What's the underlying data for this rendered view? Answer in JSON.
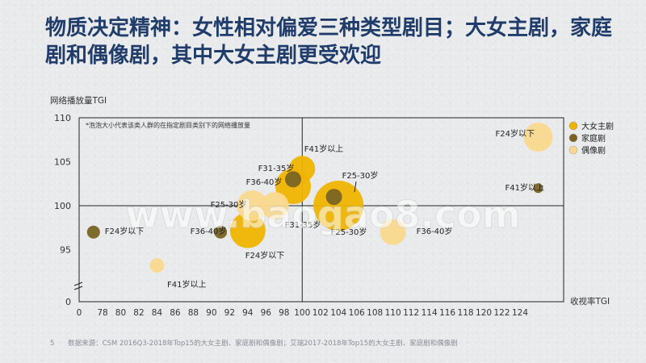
{
  "title": "物质决定精神：女性相对偏爱三种类型剧目；大女主剧，家庭剧和偶像剧，其中大女主剧更受欢迎",
  "footer": {
    "page_number": "5",
    "source": "数据来源：CSM 2016Q3-2018年Top15的大女主剧、家庭剧和偶像剧；艾瑞2017-2018年Top15的大女主剧、家庭剧和偶像剧"
  },
  "watermark": "www.baogao8.com",
  "chart_data": {
    "type": "scatter",
    "ylabel": "网络播放量TGI",
    "xlabel": "收视率TGI",
    "note": "*泡泡大小代表该类人群的在指定剧目类别下的网络播放量",
    "x_ticks": [
      0,
      78,
      80,
      82,
      84,
      86,
      88,
      90,
      92,
      94,
      96,
      98,
      100,
      102,
      104,
      106,
      108,
      110,
      112,
      114,
      116,
      118,
      120,
      122,
      124
    ],
    "y_ticks": [
      0,
      95,
      100,
      105,
      110
    ],
    "xlim": [
      76,
      126
    ],
    "ylim": [
      92,
      110
    ],
    "axis_break": true,
    "reference_lines": {
      "x": 100,
      "y": 100
    },
    "legend_position": "right",
    "colors": {
      "大女主剧": "#f0b400",
      "家庭剧": "#7a6424",
      "偶像剧": "#fad98e"
    },
    "series": [
      {
        "name": "大女主剧",
        "points": [
          {
            "label": "F41岁以上",
            "x": 100,
            "y": 104.2,
            "size": 16
          },
          {
            "label": "F36-40岁",
            "x": 99,
            "y": 102.2,
            "size": 22
          },
          {
            "label": "F25-30岁",
            "x": 104,
            "y": 100,
            "size": 31
          },
          {
            "label": "F24岁以下",
            "x": 94,
            "y": 97.2,
            "size": 22
          }
        ]
      },
      {
        "name": "家庭剧",
        "points": [
          {
            "label": "F31-35岁",
            "x": 99,
            "y": 103,
            "size": 10
          },
          {
            "label": "F25-30岁",
            "x": 103.5,
            "y": 101,
            "size": 10
          },
          {
            "label": "F36-40岁",
            "x": 91,
            "y": 97,
            "size": 8
          },
          {
            "label": "F24岁以下",
            "x": 77,
            "y": 97,
            "size": 8
          },
          {
            "label": "F41岁以上",
            "x": 126,
            "y": 102,
            "size": 6
          }
        ]
      },
      {
        "name": "偶像剧",
        "points": [
          {
            "label": "F24岁以下",
            "x": 126,
            "y": 107.8,
            "size": 18
          },
          {
            "label": "F25-30岁",
            "x": 94.5,
            "y": 100,
            "size": 19
          },
          {
            "label": "F31-35岁",
            "x": 97,
            "y": 100,
            "size": 17
          },
          {
            "label": "F36-40岁",
            "x": 110,
            "y": 97,
            "size": 16
          },
          {
            "label": "F41岁以上",
            "x": 84,
            "y": 93.2,
            "size": 9
          }
        ]
      }
    ]
  }
}
